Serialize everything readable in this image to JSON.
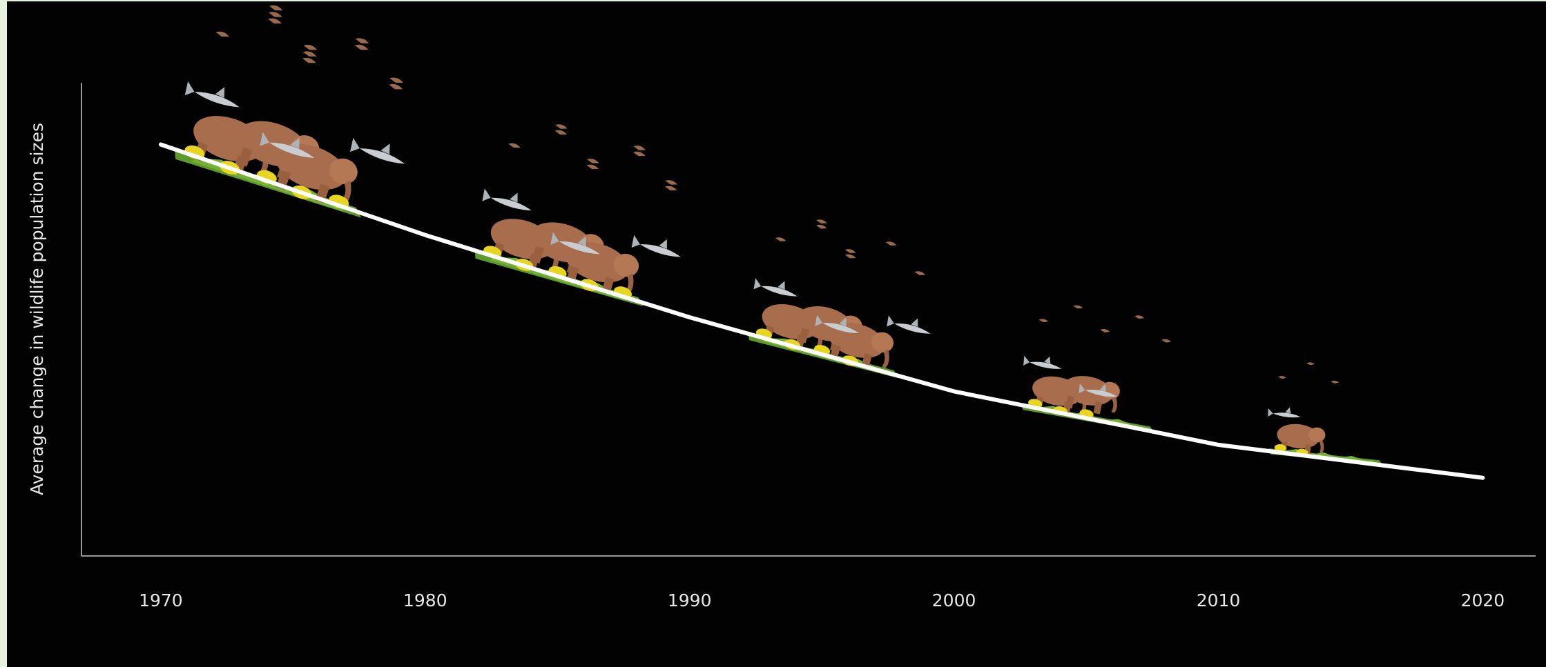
{
  "chart_data": {
    "type": "line",
    "title": "",
    "xlabel": "",
    "ylabel": "Average change in wildlife population sizes",
    "x": [
      1970,
      1980,
      1990,
      2000,
      2010,
      2020
    ],
    "xticks": [
      "1970",
      "1980",
      "1990",
      "2000",
      "2010",
      "2020"
    ],
    "series": [
      {
        "values": [
          100,
          78,
          58,
          40,
          27,
          19
        ]
      }
    ],
    "xlim": [
      1967,
      2022
    ],
    "ylim": [
      0,
      115
    ],
    "grid": false,
    "legend": "none",
    "line_color": "#ffffff",
    "background": "#020202",
    "axis_color": "#9a9a9a",
    "animal_groups": [
      {
        "year": 1974,
        "count": 5
      },
      {
        "year": 1985,
        "count": 4
      },
      {
        "year": 1995,
        "count": 3
      },
      {
        "year": 2005,
        "count": 2
      },
      {
        "year": 2014,
        "count": 1
      }
    ]
  }
}
